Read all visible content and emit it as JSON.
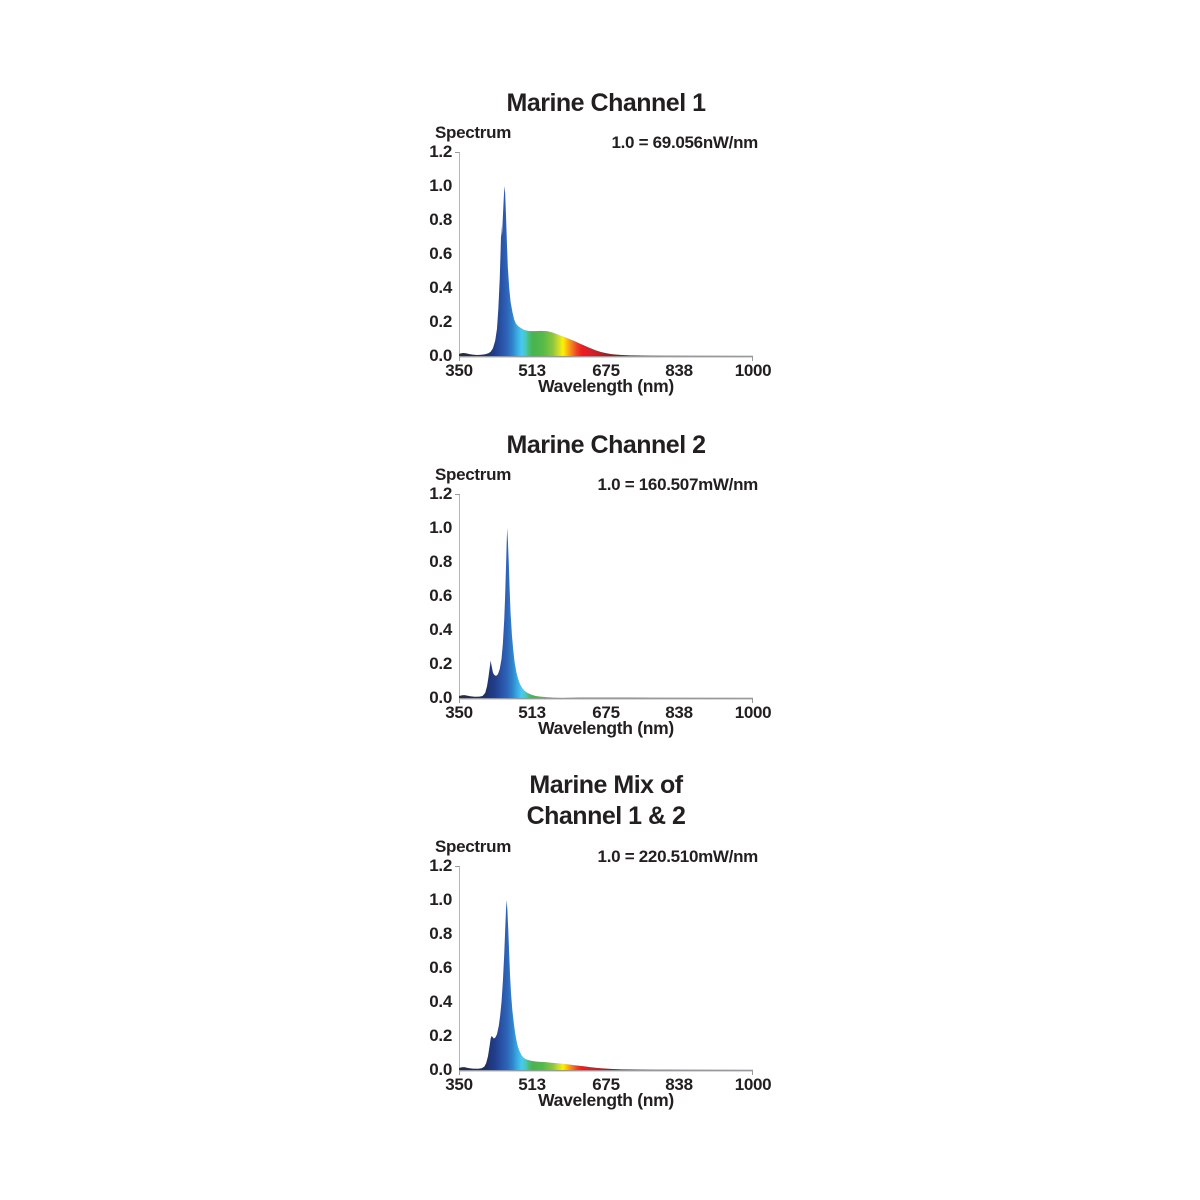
{
  "page": {
    "background_color": "#ffffff",
    "text_color": "#231f20"
  },
  "axes": {
    "y_axis_label": "Spectrum",
    "x_axis_label": "Wavelength (nm)",
    "y_ticks": [
      "1.2",
      "1.0",
      "0.8",
      "0.6",
      "0.4",
      "0.2",
      "0.0"
    ],
    "x_ticks": [
      "350",
      "513",
      "675",
      "838",
      "1000"
    ]
  },
  "charts": [
    {
      "title_lines": [
        "Marine Channel 1"
      ],
      "scale_label": "1.0 = 69.056nW/nm"
    },
    {
      "title_lines": [
        "Marine Channel 2"
      ],
      "scale_label": "1.0 = 160.507mW/nm"
    },
    {
      "title_lines": [
        "Marine Mix of",
        "Channel 1 & 2"
      ],
      "scale_label": "1.0 = 220.510mW/nm"
    }
  ],
  "spectral_gradient": [
    {
      "wl": 350,
      "color": "#262b45"
    },
    {
      "wl": 408,
      "color": "#1d2f66"
    },
    {
      "wl": 430,
      "color": "#213f8f"
    },
    {
      "wl": 445,
      "color": "#2a54a8"
    },
    {
      "wl": 456,
      "color": "#2e64b8"
    },
    {
      "wl": 468,
      "color": "#2f83cb"
    },
    {
      "wl": 478,
      "color": "#39a9e0"
    },
    {
      "wl": 488,
      "color": "#47c9f2"
    },
    {
      "wl": 497,
      "color": "#49c8c0"
    },
    {
      "wl": 505,
      "color": "#49bd72"
    },
    {
      "wl": 513,
      "color": "#47b44f"
    },
    {
      "wl": 535,
      "color": "#55b949"
    },
    {
      "wl": 558,
      "color": "#8fc63d"
    },
    {
      "wl": 572,
      "color": "#d6df28"
    },
    {
      "wl": 580,
      "color": "#fdf201"
    },
    {
      "wl": 590,
      "color": "#fbb316"
    },
    {
      "wl": 600,
      "color": "#f47b20"
    },
    {
      "wl": 612,
      "color": "#ef3b24"
    },
    {
      "wl": 622,
      "color": "#ec1c24"
    },
    {
      "wl": 650,
      "color": "#cc2027"
    },
    {
      "wl": 675,
      "color": "#a51d22"
    },
    {
      "wl": 700,
      "color": "#78201f"
    },
    {
      "wl": 730,
      "color": "#55342e"
    },
    {
      "wl": 780,
      "color": "#6f6f6f"
    },
    {
      "wl": 1000,
      "color": "#9c9c9c"
    }
  ],
  "chart_data": [
    {
      "type": "area",
      "title": "Marine Channel 1",
      "subtitle": "1.0 = 69.056nW/nm",
      "xlabel": "Wavelength (nm)",
      "ylabel": "Spectrum",
      "xlim": [
        350,
        1000
      ],
      "ylim": [
        0,
        1.2
      ],
      "x_tick_values": [
        350,
        513,
        675,
        838,
        1000
      ],
      "y_tick_values": [
        0.0,
        0.2,
        0.4,
        0.6,
        0.8,
        1.0,
        1.2
      ],
      "grid": false,
      "legend": "none",
      "points": [
        [
          350,
          0.012
        ],
        [
          355,
          0.016
        ],
        [
          360,
          0.018
        ],
        [
          365,
          0.016
        ],
        [
          372,
          0.012
        ],
        [
          380,
          0.008
        ],
        [
          390,
          0.006
        ],
        [
          400,
          0.007
        ],
        [
          408,
          0.01
        ],
        [
          415,
          0.016
        ],
        [
          420,
          0.025
        ],
        [
          425,
          0.045
        ],
        [
          430,
          0.09
        ],
        [
          434,
          0.16
        ],
        [
          437,
          0.28
        ],
        [
          440,
          0.45
        ],
        [
          442,
          0.62
        ],
        [
          443.5,
          0.77
        ],
        [
          444.5,
          0.7
        ],
        [
          445.5,
          0.73
        ],
        [
          447,
          0.82
        ],
        [
          449,
          0.93
        ],
        [
          450.5,
          1.0
        ],
        [
          452,
          0.96
        ],
        [
          454,
          0.82
        ],
        [
          456,
          0.66
        ],
        [
          458,
          0.52
        ],
        [
          461,
          0.4
        ],
        [
          464,
          0.32
        ],
        [
          468,
          0.26
        ],
        [
          472,
          0.215
        ],
        [
          476,
          0.19
        ],
        [
          481,
          0.175
        ],
        [
          487,
          0.165
        ],
        [
          495,
          0.152
        ],
        [
          505,
          0.147
        ],
        [
          515,
          0.146
        ],
        [
          530,
          0.148
        ],
        [
          545,
          0.146
        ],
        [
          555,
          0.14
        ],
        [
          565,
          0.13
        ],
        [
          575,
          0.12
        ],
        [
          585,
          0.11
        ],
        [
          595,
          0.099
        ],
        [
          605,
          0.088
        ],
        [
          615,
          0.076
        ],
        [
          625,
          0.064
        ],
        [
          635,
          0.052
        ],
        [
          645,
          0.041
        ],
        [
          655,
          0.031
        ],
        [
          665,
          0.023
        ],
        [
          675,
          0.017
        ],
        [
          685,
          0.012
        ],
        [
          695,
          0.009
        ],
        [
          710,
          0.006
        ],
        [
          730,
          0.004
        ],
        [
          760,
          0.003
        ],
        [
          800,
          0.002
        ],
        [
          900,
          0.0015
        ],
        [
          1000,
          0.001
        ]
      ]
    },
    {
      "type": "area",
      "title": "Marine Channel 2",
      "subtitle": "1.0 = 160.507mW/nm",
      "xlabel": "Wavelength (nm)",
      "ylabel": "Spectrum",
      "xlim": [
        350,
        1000
      ],
      "ylim": [
        0,
        1.2
      ],
      "x_tick_values": [
        350,
        513,
        675,
        838,
        1000
      ],
      "y_tick_values": [
        0.0,
        0.2,
        0.4,
        0.6,
        0.8,
        1.0,
        1.2
      ],
      "grid": false,
      "legend": "none",
      "points": [
        [
          350,
          0.012
        ],
        [
          357,
          0.016
        ],
        [
          362,
          0.017
        ],
        [
          368,
          0.014
        ],
        [
          375,
          0.01
        ],
        [
          385,
          0.007
        ],
        [
          395,
          0.008
        ],
        [
          402,
          0.012
        ],
        [
          408,
          0.03
        ],
        [
          412,
          0.07
        ],
        [
          415,
          0.12
        ],
        [
          418,
          0.18
        ],
        [
          420,
          0.22
        ],
        [
          422,
          0.19
        ],
        [
          425,
          0.15
        ],
        [
          428,
          0.135
        ],
        [
          432,
          0.13
        ],
        [
          436,
          0.14
        ],
        [
          440,
          0.17
        ],
        [
          444,
          0.23
        ],
        [
          447,
          0.32
        ],
        [
          450,
          0.46
        ],
        [
          452,
          0.6
        ],
        [
          454,
          0.78
        ],
        [
          455.5,
          0.92
        ],
        [
          456.5,
          1.0
        ],
        [
          458,
          0.93
        ],
        [
          460,
          0.8
        ],
        [
          462,
          0.64
        ],
        [
          464,
          0.5
        ],
        [
          467,
          0.37
        ],
        [
          470,
          0.28
        ],
        [
          473,
          0.21
        ],
        [
          477,
          0.15
        ],
        [
          481,
          0.11
        ],
        [
          485,
          0.08
        ],
        [
          490,
          0.058
        ],
        [
          495,
          0.042
        ],
        [
          500,
          0.032
        ],
        [
          506,
          0.024
        ],
        [
          512,
          0.018
        ],
        [
          520,
          0.012
        ],
        [
          530,
          0.008
        ],
        [
          545,
          0.005
        ],
        [
          560,
          0.003
        ],
        [
          600,
          0.002
        ],
        [
          700,
          0.0015
        ],
        [
          1000,
          0.001
        ]
      ]
    },
    {
      "type": "area",
      "title": "Marine Mix of Channel 1 & 2",
      "subtitle": "1.0 = 220.510mW/nm",
      "xlabel": "Wavelength (nm)",
      "ylabel": "Spectrum",
      "xlim": [
        350,
        1000
      ],
      "ylim": [
        0,
        1.2
      ],
      "x_tick_values": [
        350,
        513,
        675,
        838,
        1000
      ],
      "y_tick_values": [
        0.0,
        0.2,
        0.4,
        0.6,
        0.8,
        1.0,
        1.2
      ],
      "grid": false,
      "legend": "none",
      "points": [
        [
          350,
          0.012
        ],
        [
          356,
          0.016
        ],
        [
          362,
          0.017
        ],
        [
          370,
          0.012
        ],
        [
          380,
          0.008
        ],
        [
          392,
          0.007
        ],
        [
          400,
          0.01
        ],
        [
          406,
          0.02
        ],
        [
          410,
          0.04
        ],
        [
          414,
          0.08
        ],
        [
          417,
          0.13
        ],
        [
          420,
          0.185
        ],
        [
          422,
          0.2
        ],
        [
          424,
          0.195
        ],
        [
          427,
          0.185
        ],
        [
          430,
          0.19
        ],
        [
          434,
          0.21
        ],
        [
          438,
          0.26
        ],
        [
          441,
          0.32
        ],
        [
          444,
          0.4
        ],
        [
          447,
          0.52
        ],
        [
          450,
          0.68
        ],
        [
          452,
          0.82
        ],
        [
          454,
          0.95
        ],
        [
          455.5,
          1.0
        ],
        [
          457,
          0.94
        ],
        [
          459,
          0.82
        ],
        [
          461,
          0.68
        ],
        [
          463,
          0.55
        ],
        [
          465,
          0.45
        ],
        [
          468,
          0.35
        ],
        [
          471,
          0.28
        ],
        [
          474,
          0.22
        ],
        [
          477,
          0.175
        ],
        [
          480,
          0.14
        ],
        [
          484,
          0.11
        ],
        [
          488,
          0.088
        ],
        [
          493,
          0.072
        ],
        [
          498,
          0.063
        ],
        [
          505,
          0.057
        ],
        [
          512,
          0.053
        ],
        [
          520,
          0.05
        ],
        [
          530,
          0.048
        ],
        [
          542,
          0.046
        ],
        [
          555,
          0.043
        ],
        [
          568,
          0.04
        ],
        [
          580,
          0.037
        ],
        [
          592,
          0.033
        ],
        [
          604,
          0.029
        ],
        [
          616,
          0.025
        ],
        [
          628,
          0.021
        ],
        [
          640,
          0.017
        ],
        [
          652,
          0.013
        ],
        [
          664,
          0.01
        ],
        [
          676,
          0.008
        ],
        [
          690,
          0.006
        ],
        [
          710,
          0.004
        ],
        [
          740,
          0.003
        ],
        [
          780,
          0.002
        ],
        [
          900,
          0.0015
        ],
        [
          1000,
          0.001
        ]
      ]
    }
  ]
}
